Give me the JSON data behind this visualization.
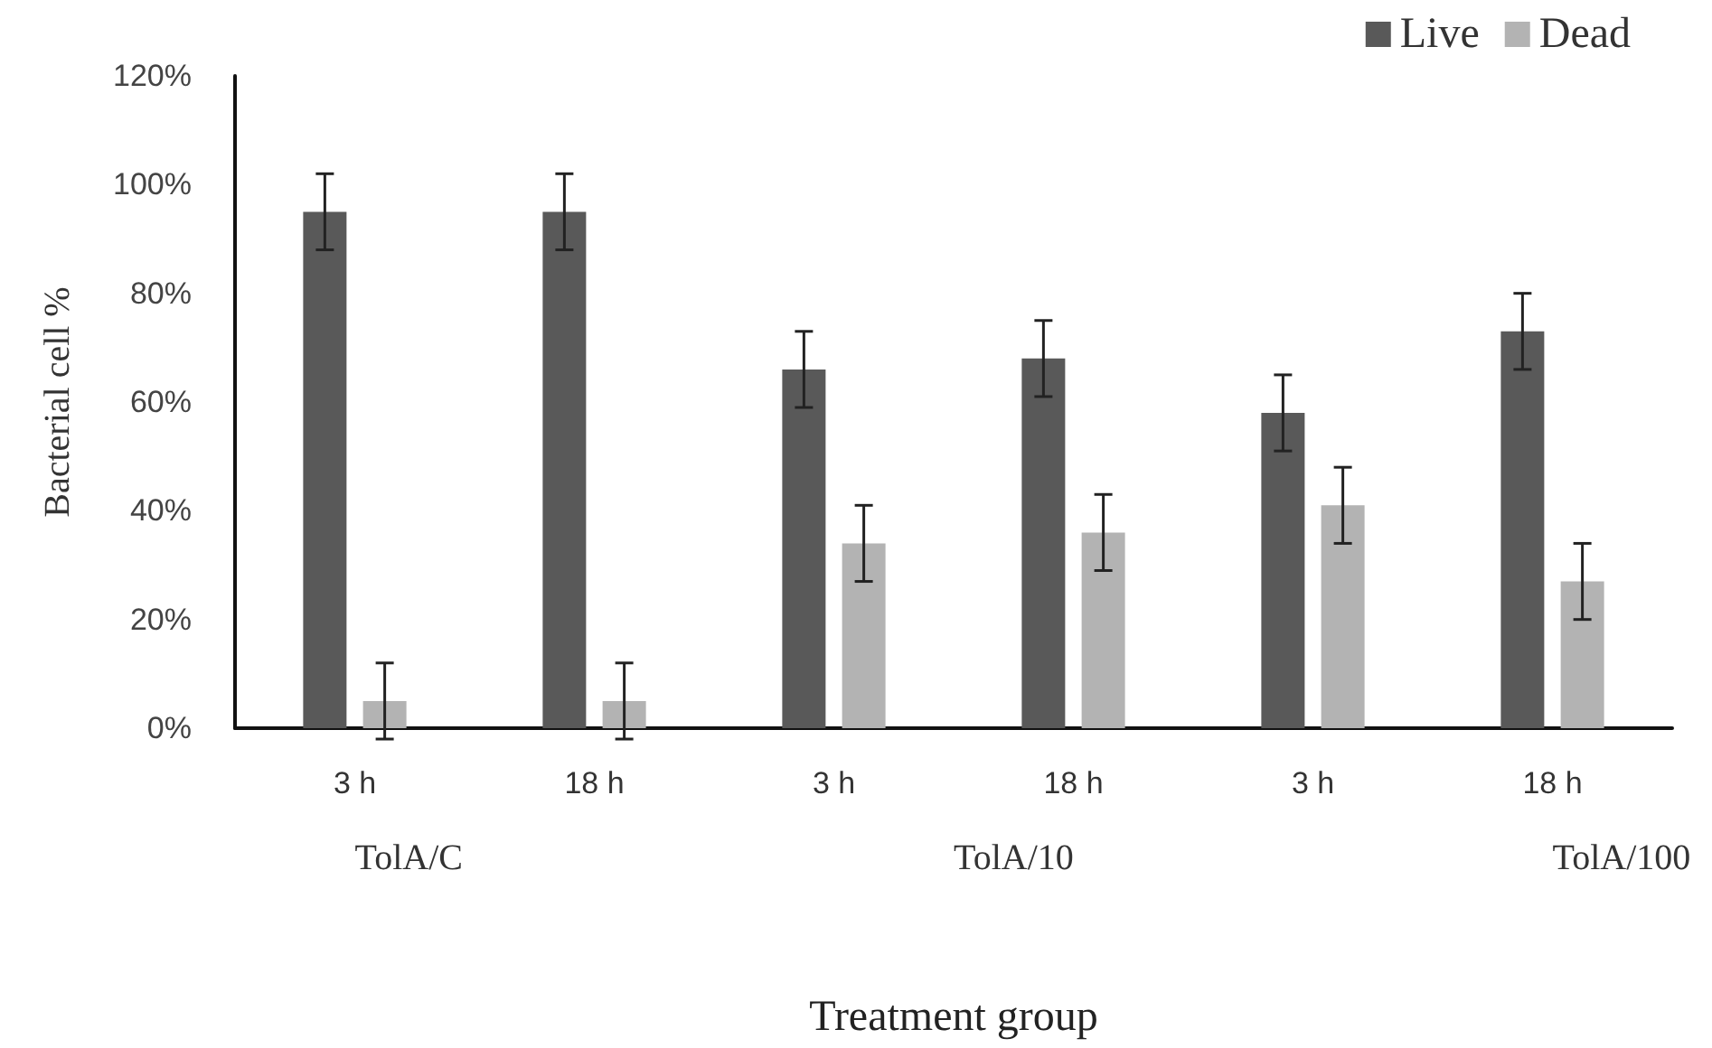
{
  "chart_data": {
    "type": "bar",
    "xlabel": "Treatment group",
    "ylabel": "Bacterial cell %",
    "categories": [
      "3 h",
      "18 h",
      "3 h",
      "18 h",
      "3 h",
      "18 h"
    ],
    "annotations": [
      "TolA/C",
      "TolA/10",
      "TolA/100"
    ],
    "series": [
      {
        "name": "Live",
        "color": "#595959",
        "values": [
          95,
          95,
          66,
          68,
          58,
          73
        ],
        "errors": [
          7,
          7,
          7,
          7,
          7,
          7
        ]
      },
      {
        "name": "Dead",
        "color": "#b3b3b3",
        "values": [
          5,
          5,
          34,
          36,
          41,
          27
        ],
        "errors": [
          7,
          7,
          7,
          7,
          7,
          7
        ]
      }
    ],
    "ylim": [
      0,
      120
    ],
    "yticks": [
      {
        "value": 0,
        "label": "0%"
      },
      {
        "value": 20,
        "label": "20%"
      },
      {
        "value": 40,
        "label": "40%"
      },
      {
        "value": 60,
        "label": "60%"
      },
      {
        "value": 80,
        "label": "80%"
      },
      {
        "value": 100,
        "label": "100%"
      },
      {
        "value": 120,
        "label": "120%"
      }
    ],
    "grid": false,
    "legend": "top right"
  }
}
